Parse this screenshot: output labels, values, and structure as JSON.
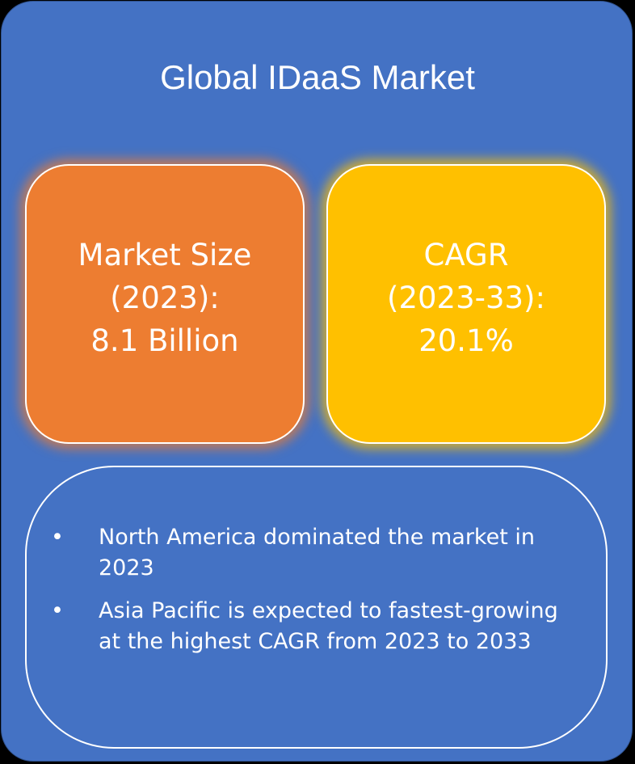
{
  "title": "Global IDaaS Market",
  "cards": [
    {
      "lines": [
        "Market Size",
        "(2023):",
        "8.1 Billion"
      ]
    },
    {
      "lines": [
        "CAGR",
        "(2023-33):",
        "20.1%"
      ]
    }
  ],
  "highlights": [
    "North America dominated the market in 2023",
    "Asia Pacific is expected to fastest-growing at the highest CAGR from 2023 to 2033"
  ],
  "bullet_symbol": "•",
  "colors": {
    "background": "#4472c4",
    "market_size_card": "#ed7d31",
    "cagr_card": "#ffc000",
    "text": "#ffffff"
  }
}
